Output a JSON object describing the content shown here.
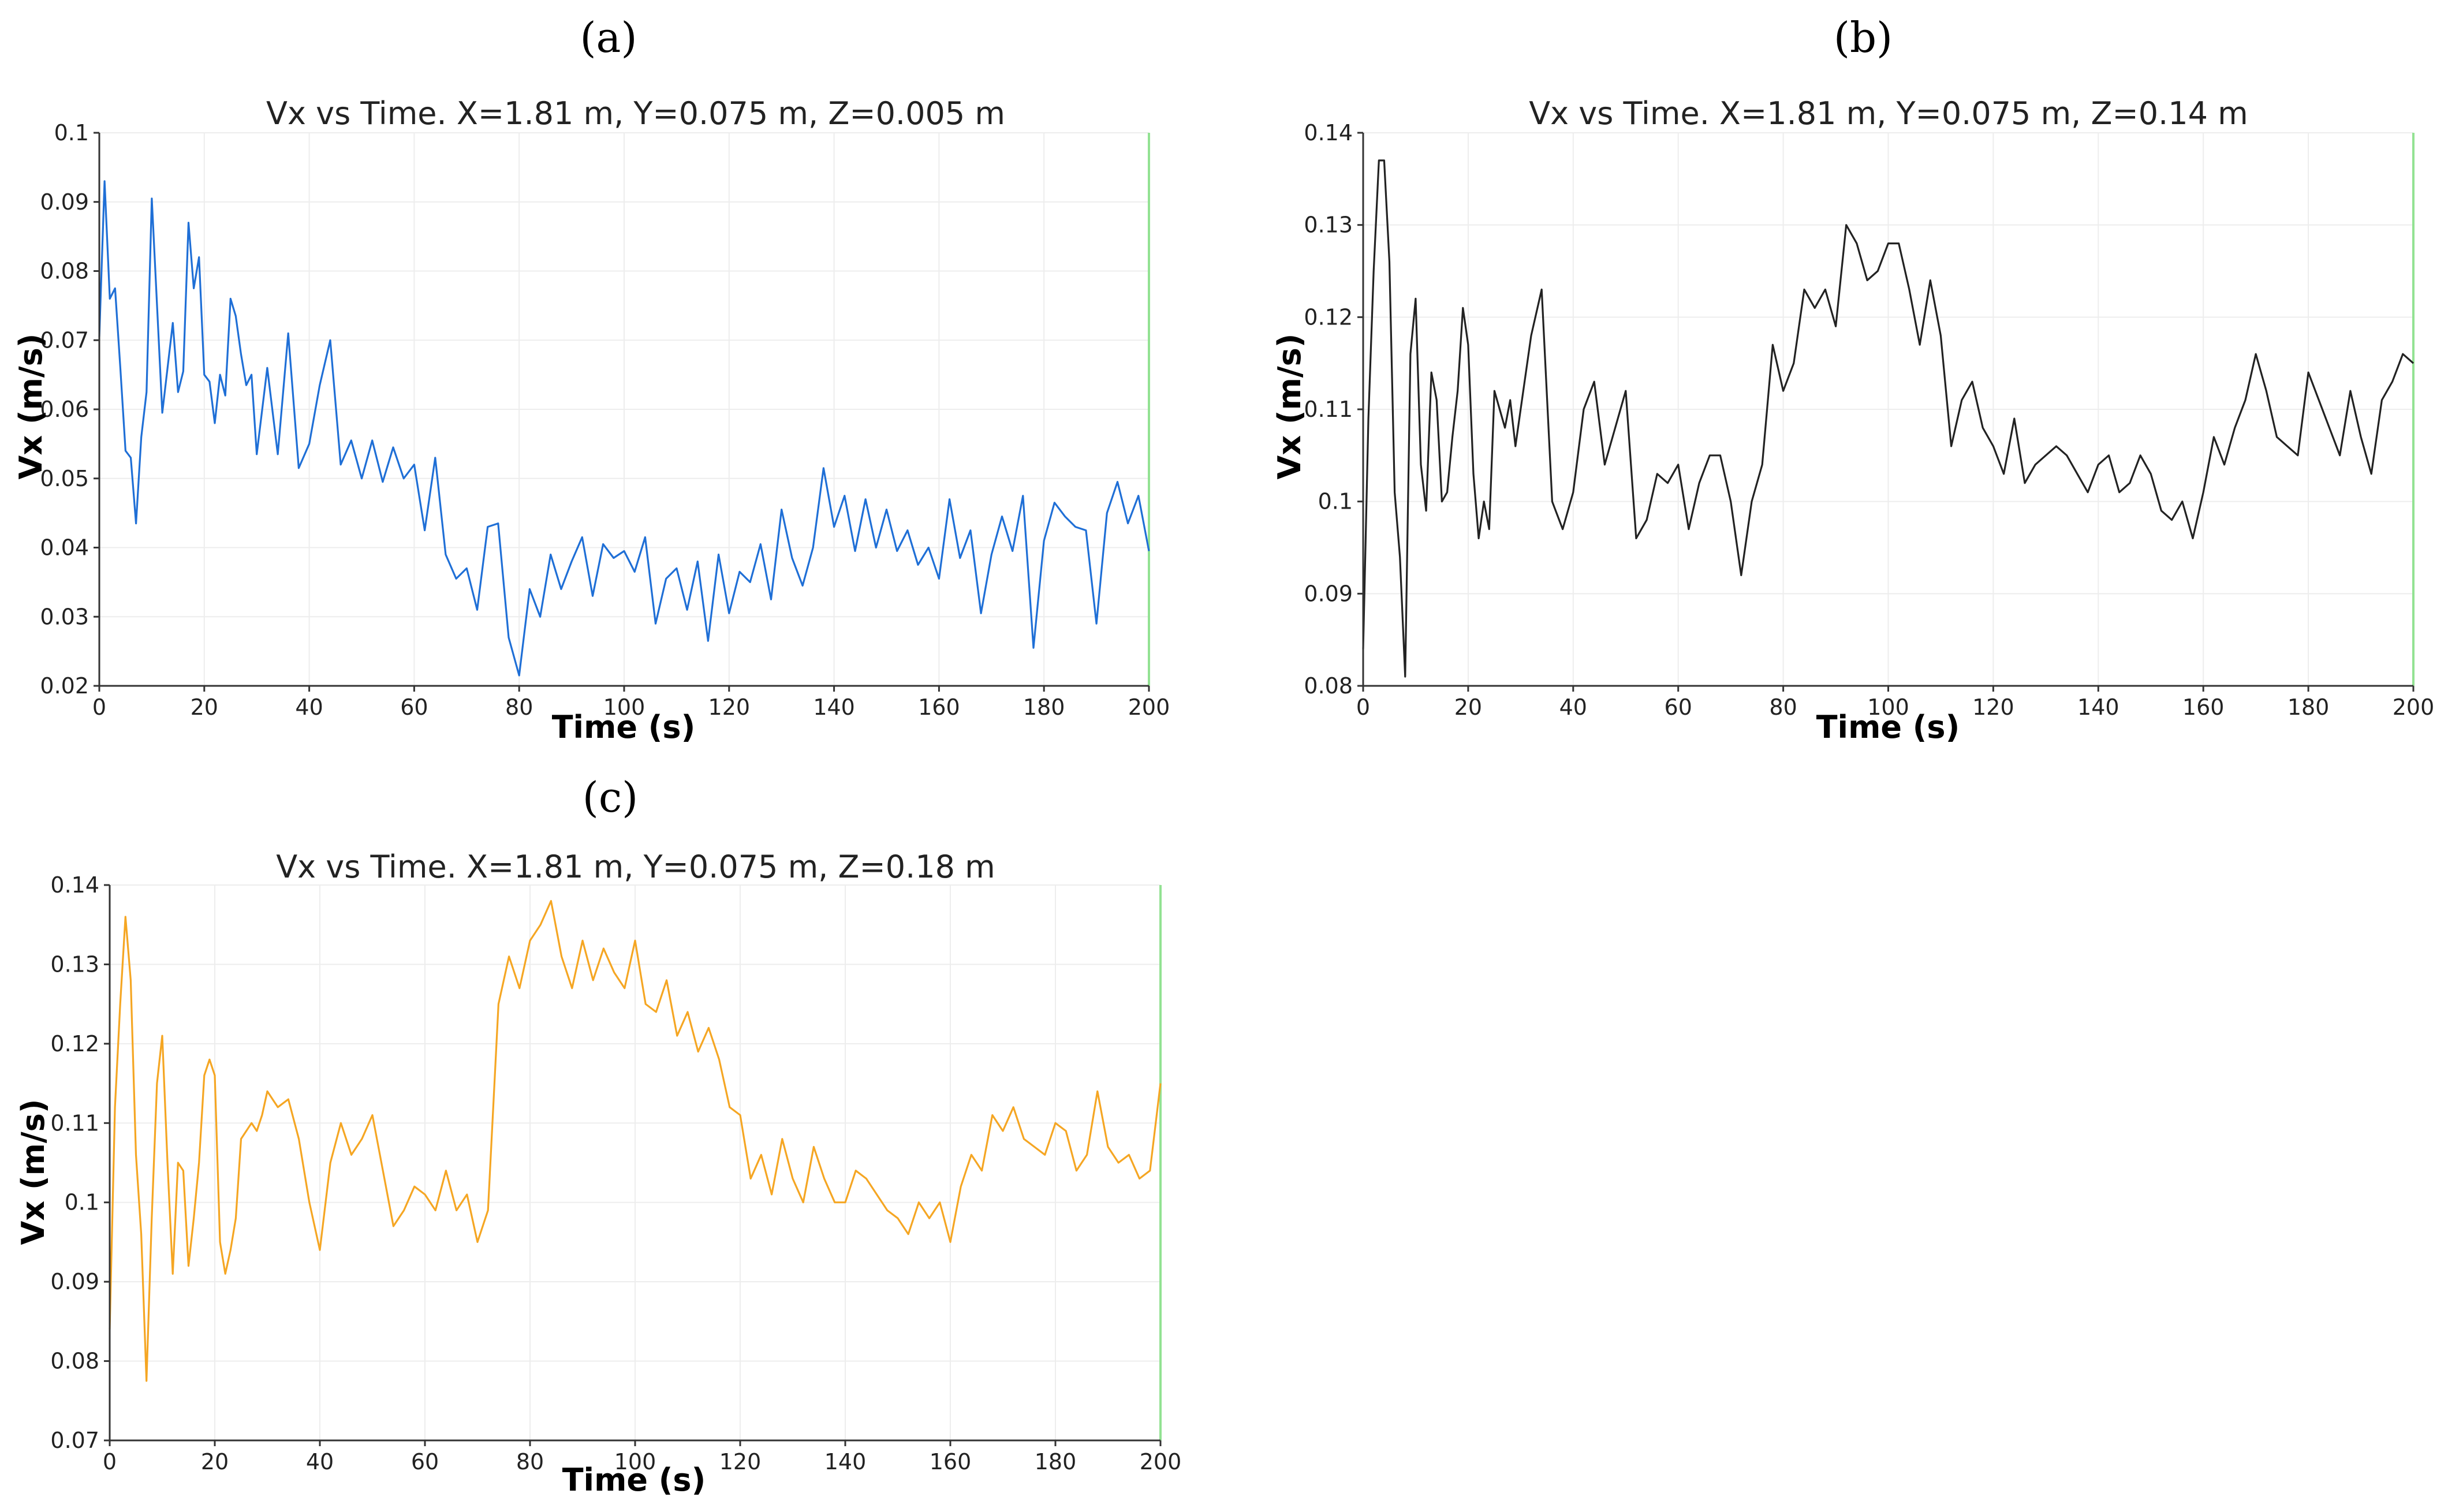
{
  "colors": {
    "a": "#1f6fd6",
    "b": "#222222",
    "c": "#f5a623",
    "cursor": "#93e293"
  },
  "chart_data": [
    {
      "panel": "(a)",
      "type": "line",
      "title": "Vx vs Time. X=1.81 m, Y=0.075 m, Z=0.005 m",
      "xlabel": "Time (s)",
      "ylabel": "Vx (m/s)",
      "xlim": [
        0,
        200
      ],
      "ylim": [
        0.02,
        0.1
      ],
      "xticks": [
        "0",
        "20",
        "40",
        "60",
        "80",
        "100",
        "120",
        "140",
        "160",
        "180",
        "200"
      ],
      "yticks": [
        "0.02",
        "0.03",
        "0.04",
        "0.05",
        "0.06",
        "0.07",
        "0.08",
        "0.09",
        "0.1"
      ],
      "grid": true,
      "cursor_x": 200,
      "series": [
        {
          "name": "Vx",
          "x": [
            0,
            1,
            2,
            3,
            4,
            5,
            6,
            7,
            8,
            9,
            10,
            11,
            12,
            13,
            14,
            15,
            16,
            17,
            18,
            19,
            20,
            21,
            22,
            23,
            24,
            25,
            26,
            27,
            28,
            29,
            30,
            32,
            34,
            36,
            38,
            40,
            42,
            44,
            46,
            48,
            50,
            52,
            54,
            56,
            58,
            60,
            62,
            64,
            66,
            68,
            70,
            72,
            74,
            76,
            78,
            80,
            82,
            84,
            86,
            88,
            90,
            92,
            94,
            96,
            98,
            100,
            102,
            104,
            106,
            108,
            110,
            112,
            114,
            116,
            118,
            120,
            122,
            124,
            126,
            128,
            130,
            132,
            134,
            136,
            138,
            140,
            142,
            144,
            146,
            148,
            150,
            152,
            154,
            156,
            158,
            160,
            162,
            164,
            166,
            168,
            170,
            172,
            174,
            176,
            178,
            180,
            182,
            184,
            186,
            188,
            190,
            192,
            194,
            196,
            198,
            200
          ],
          "values": [
            0.0705,
            0.093,
            0.076,
            0.0775,
            0.066,
            0.054,
            0.053,
            0.0435,
            0.056,
            0.0625,
            0.0905,
            0.075,
            0.0595,
            0.066,
            0.0725,
            0.0625,
            0.0655,
            0.087,
            0.0775,
            0.082,
            0.065,
            0.064,
            0.058,
            0.065,
            0.062,
            0.076,
            0.0735,
            0.068,
            0.0635,
            0.065,
            0.0535,
            0.066,
            0.0535,
            0.071,
            0.0515,
            0.055,
            0.0635,
            0.07,
            0.052,
            0.0555,
            0.05,
            0.0555,
            0.0495,
            0.0545,
            0.05,
            0.052,
            0.0425,
            0.053,
            0.039,
            0.0355,
            0.037,
            0.031,
            0.043,
            0.0435,
            0.027,
            0.0215,
            0.034,
            0.03,
            0.039,
            0.034,
            0.038,
            0.0415,
            0.033,
            0.0405,
            0.0385,
            0.0395,
            0.0365,
            0.0415,
            0.029,
            0.0355,
            0.037,
            0.031,
            0.038,
            0.0265,
            0.039,
            0.0305,
            0.0365,
            0.035,
            0.0405,
            0.0325,
            0.0455,
            0.0385,
            0.0345,
            0.04,
            0.0515,
            0.043,
            0.0475,
            0.0395,
            0.047,
            0.04,
            0.0455,
            0.0395,
            0.0425,
            0.0375,
            0.04,
            0.0355,
            0.047,
            0.0385,
            0.0425,
            0.0305,
            0.039,
            0.0445,
            0.0395,
            0.0475,
            0.0255,
            0.041,
            0.0465,
            0.0445,
            0.043,
            0.0425,
            0.029,
            0.045,
            0.0495,
            0.0435,
            0.0475,
            0.0395
          ]
        }
      ]
    },
    {
      "panel": "(b)",
      "type": "line",
      "title": "Vx vs Time. X=1.81 m, Y=0.075 m, Z=0.14 m",
      "xlabel": "Time (s)",
      "ylabel": "Vx (m/s)",
      "xlim": [
        0,
        200
      ],
      "ylim": [
        0.08,
        0.14
      ],
      "xticks": [
        "0",
        "20",
        "40",
        "60",
        "80",
        "100",
        "120",
        "140",
        "160",
        "180",
        "200"
      ],
      "yticks": [
        "0.08",
        "0.09",
        "0.1",
        "0.11",
        "0.12",
        "0.13",
        "0.14"
      ],
      "grid": true,
      "cursor_x": 200,
      "series": [
        {
          "name": "Vx",
          "x": [
            0,
            1,
            2,
            3,
            4,
            5,
            6,
            7,
            8,
            9,
            10,
            11,
            12,
            13,
            14,
            15,
            16,
            17,
            18,
            19,
            20,
            21,
            22,
            23,
            24,
            25,
            26,
            27,
            28,
            29,
            30,
            32,
            34,
            36,
            38,
            40,
            42,
            44,
            46,
            48,
            50,
            52,
            54,
            56,
            58,
            60,
            62,
            64,
            66,
            68,
            70,
            72,
            74,
            76,
            78,
            80,
            82,
            84,
            86,
            88,
            90,
            92,
            94,
            96,
            98,
            100,
            102,
            104,
            106,
            108,
            110,
            112,
            114,
            116,
            118,
            120,
            122,
            124,
            126,
            128,
            130,
            132,
            134,
            136,
            138,
            140,
            142,
            144,
            146,
            148,
            150,
            152,
            154,
            156,
            158,
            160,
            162,
            164,
            166,
            168,
            170,
            172,
            174,
            176,
            178,
            180,
            182,
            184,
            186,
            188,
            190,
            192,
            194,
            196,
            198,
            200
          ],
          "values": [
            0.084,
            0.109,
            0.125,
            0.137,
            0.137,
            0.126,
            0.101,
            0.094,
            0.081,
            0.116,
            0.122,
            0.104,
            0.099,
            0.114,
            0.111,
            0.1,
            0.101,
            0.107,
            0.112,
            0.121,
            0.117,
            0.103,
            0.096,
            0.1,
            0.097,
            0.112,
            0.11,
            0.108,
            0.111,
            0.106,
            0.11,
            0.118,
            0.123,
            0.1,
            0.097,
            0.101,
            0.11,
            0.113,
            0.104,
            0.108,
            0.112,
            0.096,
            0.098,
            0.103,
            0.102,
            0.104,
            0.097,
            0.102,
            0.105,
            0.105,
            0.1,
            0.092,
            0.1,
            0.104,
            0.117,
            0.112,
            0.115,
            0.123,
            0.121,
            0.123,
            0.119,
            0.13,
            0.128,
            0.124,
            0.125,
            0.128,
            0.128,
            0.123,
            0.117,
            0.124,
            0.118,
            0.106,
            0.111,
            0.113,
            0.108,
            0.106,
            0.103,
            0.109,
            0.102,
            0.104,
            0.105,
            0.106,
            0.105,
            0.103,
            0.101,
            0.104,
            0.105,
            0.101,
            0.102,
            0.105,
            0.103,
            0.099,
            0.098,
            0.1,
            0.096,
            0.101,
            0.107,
            0.104,
            0.108,
            0.111,
            0.116,
            0.112,
            0.107,
            0.106,
            0.105,
            0.114,
            0.111,
            0.108,
            0.105,
            0.112,
            0.107,
            0.103,
            0.111,
            0.113,
            0.116,
            0.115
          ]
        }
      ]
    },
    {
      "panel": "(c)",
      "type": "line",
      "title": "Vx vs Time. X=1.81 m, Y=0.075 m, Z=0.18 m",
      "xlabel": "Time (s)",
      "ylabel": "Vx (m/s)",
      "xlim": [
        0,
        200
      ],
      "ylim": [
        0.07,
        0.14
      ],
      "xticks": [
        "0",
        "20",
        "40",
        "60",
        "80",
        "100",
        "120",
        "140",
        "160",
        "180",
        "200"
      ],
      "yticks": [
        "0.07",
        "0.08",
        "0.09",
        "0.1",
        "0.11",
        "0.12",
        "0.13",
        "0.14"
      ],
      "grid": true,
      "cursor_x": 200,
      "series": [
        {
          "name": "Vx",
          "x": [
            0,
            1,
            2,
            3,
            4,
            5,
            6,
            7,
            8,
            9,
            10,
            11,
            12,
            13,
            14,
            15,
            16,
            17,
            18,
            19,
            20,
            21,
            22,
            23,
            24,
            25,
            26,
            27,
            28,
            29,
            30,
            32,
            34,
            36,
            38,
            40,
            42,
            44,
            46,
            48,
            50,
            52,
            54,
            56,
            58,
            60,
            62,
            64,
            66,
            68,
            70,
            72,
            74,
            76,
            78,
            80,
            82,
            84,
            86,
            88,
            90,
            92,
            94,
            96,
            98,
            100,
            102,
            104,
            106,
            108,
            110,
            112,
            114,
            116,
            118,
            120,
            122,
            124,
            126,
            128,
            130,
            132,
            134,
            136,
            138,
            140,
            142,
            144,
            146,
            148,
            150,
            152,
            154,
            156,
            158,
            160,
            162,
            164,
            166,
            168,
            170,
            172,
            174,
            176,
            178,
            180,
            182,
            184,
            186,
            188,
            190,
            192,
            194,
            196,
            198,
            200
          ],
          "values": [
            0.084,
            0.112,
            0.125,
            0.136,
            0.128,
            0.106,
            0.096,
            0.0775,
            0.098,
            0.115,
            0.121,
            0.105,
            0.091,
            0.105,
            0.104,
            0.092,
            0.098,
            0.105,
            0.116,
            0.118,
            0.116,
            0.095,
            0.091,
            0.094,
            0.098,
            0.108,
            0.109,
            0.11,
            0.109,
            0.111,
            0.114,
            0.112,
            0.113,
            0.108,
            0.1,
            0.094,
            0.105,
            0.11,
            0.106,
            0.108,
            0.111,
            0.104,
            0.097,
            0.099,
            0.102,
            0.101,
            0.099,
            0.104,
            0.099,
            0.101,
            0.095,
            0.099,
            0.125,
            0.131,
            0.127,
            0.133,
            0.135,
            0.138,
            0.131,
            0.127,
            0.133,
            0.128,
            0.132,
            0.129,
            0.127,
            0.133,
            0.125,
            0.124,
            0.128,
            0.121,
            0.124,
            0.119,
            0.122,
            0.118,
            0.112,
            0.111,
            0.103,
            0.106,
            0.101,
            0.108,
            0.103,
            0.1,
            0.107,
            0.103,
            0.1,
            0.1,
            0.104,
            0.103,
            0.101,
            0.099,
            0.098,
            0.096,
            0.1,
            0.098,
            0.1,
            0.095,
            0.102,
            0.106,
            0.104,
            0.111,
            0.109,
            0.112,
            0.108,
            0.107,
            0.106,
            0.11,
            0.109,
            0.104,
            0.106,
            0.114,
            0.107,
            0.105,
            0.106,
            0.103,
            0.104,
            0.115
          ]
        }
      ]
    }
  ]
}
